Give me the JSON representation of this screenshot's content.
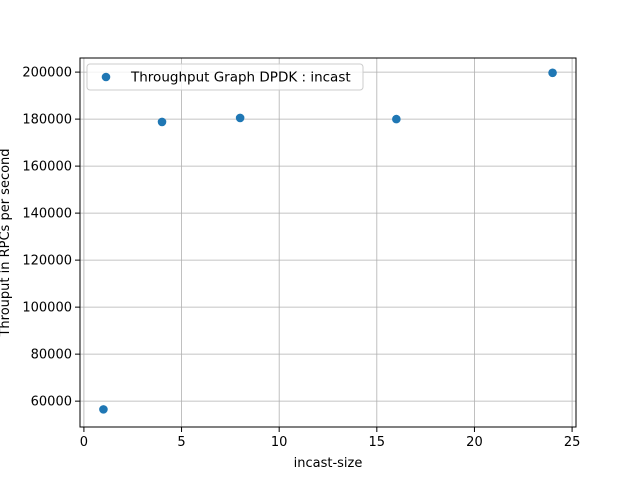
{
  "chart_data": {
    "type": "scatter",
    "title": "",
    "xlabel": "incast-size",
    "ylabel": "Throuput in RPCs per second",
    "xlim": [
      -0.2,
      25.2
    ],
    "ylim": [
      49000,
      206000
    ],
    "xticks": [
      0,
      5,
      10,
      15,
      20,
      25
    ],
    "yticks": [
      60000,
      80000,
      100000,
      120000,
      140000,
      160000,
      180000,
      200000
    ],
    "grid": true,
    "legend_position": "top-left",
    "series": [
      {
        "name": "Throughput Graph DPDK : incast",
        "color": "#1f77b4",
        "points": [
          {
            "x": 1,
            "y": 56500
          },
          {
            "x": 4,
            "y": 178800
          },
          {
            "x": 8,
            "y": 180500
          },
          {
            "x": 16,
            "y": 180000
          },
          {
            "x": 24,
            "y": 199700
          }
        ]
      }
    ]
  }
}
